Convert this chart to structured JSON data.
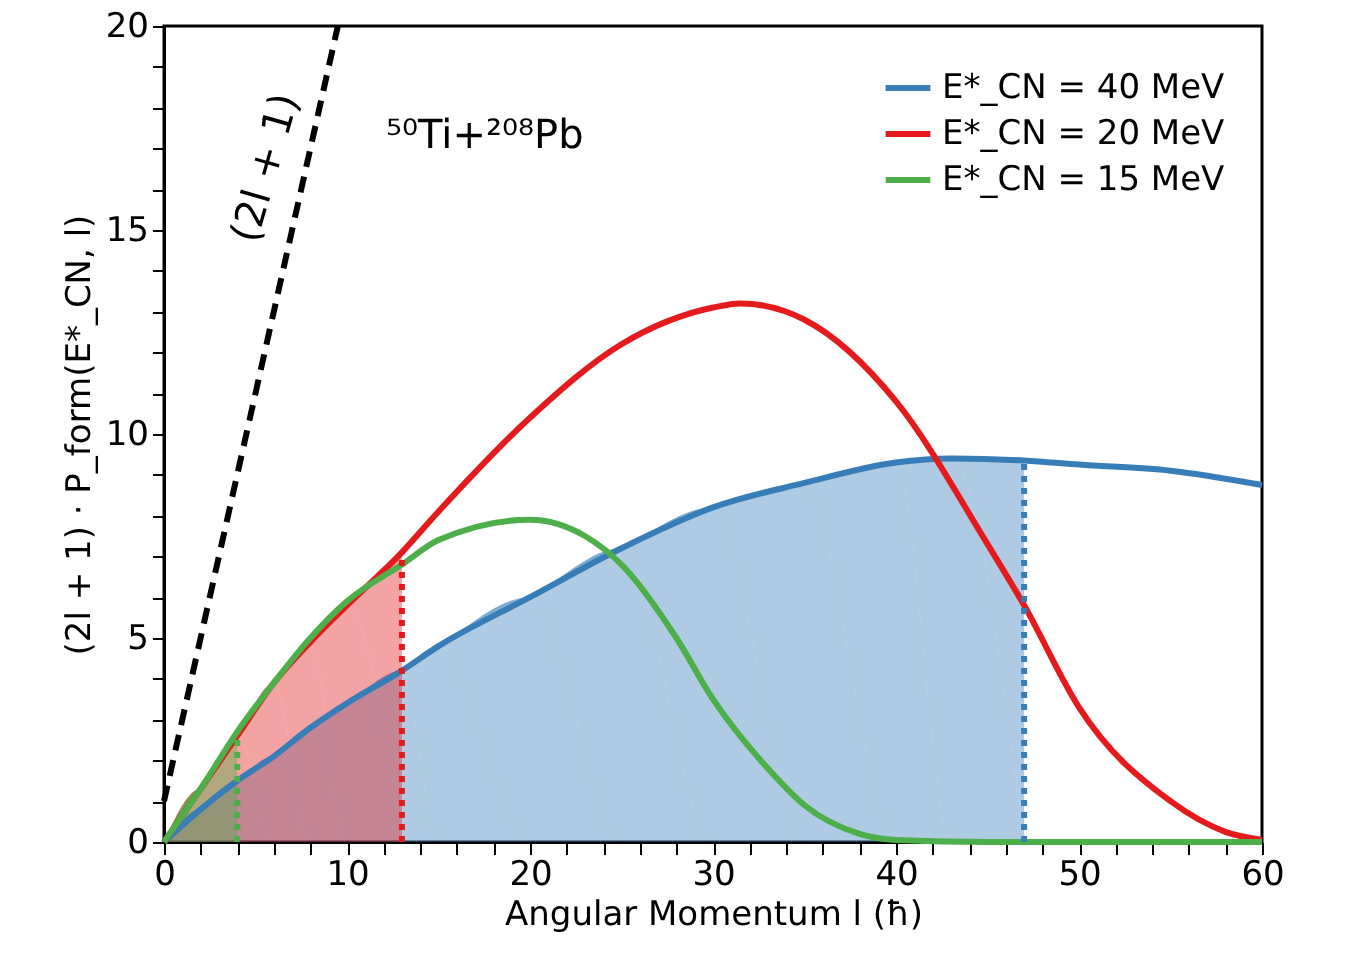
{
  "chart_data": {
    "type": "line",
    "xlabel": "Angular Momentum l (ħ)",
    "ylabel": "(2l + 1) · P_form(E*_CN, l)",
    "xlim": [
      0,
      60
    ],
    "ylim": [
      0,
      20
    ],
    "xticks": [
      0,
      {
        "value": 2,
        "label": null
      },
      {
        "value": 4,
        "label": null
      },
      {
        "value": 6,
        "label": null
      },
      {
        "value": 8,
        "label": null
      },
      10,
      {
        "value": 12,
        "label": null
      },
      {
        "value": 14,
        "label": null
      },
      {
        "value": 16,
        "label": null
      },
      {
        "value": 18,
        "label": null
      },
      20,
      {
        "value": 22,
        "label": null
      },
      {
        "value": 24,
        "label": null
      },
      {
        "value": 26,
        "label": null
      },
      {
        "value": 28,
        "label": null
      },
      30,
      {
        "value": 32,
        "label": null
      },
      {
        "value": 34,
        "label": null
      },
      {
        "value": 36,
        "label": null
      },
      {
        "value": 38,
        "label": null
      },
      40,
      {
        "value": 42,
        "label": null
      },
      {
        "value": 44,
        "label": null
      },
      {
        "value": 46,
        "label": null
      },
      {
        "value": 48,
        "label": null
      },
      50,
      {
        "value": 52,
        "label": null
      },
      {
        "value": 54,
        "label": null
      },
      {
        "value": 56,
        "label": null
      },
      {
        "value": 58,
        "label": null
      },
      60
    ],
    "yticks": [
      0,
      {
        "value": 1,
        "label": null
      },
      {
        "value": 2,
        "label": null
      },
      {
        "value": 3,
        "label": null
      },
      {
        "value": 4,
        "label": null
      },
      5,
      {
        "value": 6,
        "label": null
      },
      {
        "value": 7,
        "label": null
      },
      {
        "value": 8,
        "label": null
      },
      {
        "value": 9,
        "label": null
      },
      10,
      {
        "value": 11,
        "label": null
      },
      {
        "value": 12,
        "label": null
      },
      {
        "value": 13,
        "label": null
      },
      {
        "value": 14,
        "label": null
      },
      15,
      {
        "value": 16,
        "label": null
      },
      {
        "value": 17,
        "label": null
      },
      {
        "value": 18,
        "label": null
      },
      {
        "value": 19,
        "label": null
      },
      20
    ],
    "legend": "top right",
    "series": [
      {
        "color": "#000000",
        "line_style": "dashed",
        "x": [
          0,
          9.5
        ],
        "values": [
          1,
          20
        ]
      },
      {
        "type": "area",
        "color": "#377eb8",
        "x": [
          0,
          2,
          4,
          6,
          8,
          10,
          13,
          15,
          20,
          25,
          30,
          35,
          40,
          43,
          47
        ],
        "values": [
          0,
          0.8,
          1.5,
          2.1,
          2.8,
          3.4,
          4.2,
          4.8,
          6.0,
          7.2,
          8.2,
          8.8,
          9.3,
          9.4,
          9.35
        ]
      },
      {
        "type": "area",
        "color": "#e41a1c",
        "x": [
          0,
          2,
          4,
          6,
          8,
          10,
          13
        ],
        "values": [
          0,
          1.3,
          2.6,
          3.9,
          4.9,
          5.8,
          7.1
        ]
      },
      {
        "type": "area",
        "color": "#4daf4a",
        "x": [
          0,
          2,
          4
        ],
        "values": [
          0,
          1.3,
          2.7
        ]
      },
      {
        "name": "E*_CN = 40 MeV",
        "color": "#377eb8",
        "line_style": "solid",
        "x": [
          0,
          2,
          4,
          6,
          8,
          10,
          13,
          15,
          20,
          25,
          30,
          35,
          40,
          43,
          47,
          50,
          55,
          60
        ],
        "values": [
          0,
          0.8,
          1.5,
          2.1,
          2.8,
          3.4,
          4.2,
          4.8,
          6.0,
          7.2,
          8.2,
          8.8,
          9.3,
          9.4,
          9.35,
          9.25,
          9.1,
          8.75
        ]
      },
      {
        "name": "E*_CN = 20 MeV",
        "color": "#e41a1c",
        "line_style": "solid",
        "x": [
          0,
          2,
          4,
          6,
          8,
          10,
          13,
          15,
          20,
          25,
          30,
          31.5,
          35,
          40,
          45,
          47,
          50,
          55,
          58,
          60
        ],
        "values": [
          0,
          1.3,
          2.6,
          3.9,
          4.9,
          5.8,
          7.1,
          8.1,
          10.4,
          12.2,
          13.1,
          13.2,
          12.8,
          10.8,
          7.3,
          5.8,
          3.3,
          1.0,
          0.25,
          0.05
        ]
      },
      {
        "name": "E*_CN = 15 MeV",
        "color": "#4daf4a",
        "line_style": "solid",
        "x": [
          0,
          2,
          4,
          6,
          8,
          10,
          13,
          15,
          20,
          23,
          25,
          28,
          30,
          33,
          35,
          38,
          40,
          45,
          60
        ],
        "values": [
          0,
          1.3,
          2.7,
          3.9,
          5.0,
          5.9,
          6.8,
          7.4,
          7.9,
          7.5,
          6.8,
          5.0,
          3.5,
          1.8,
          0.9,
          0.2,
          0.05,
          0,
          0
        ]
      },
      {
        "color": "#377eb8",
        "line_style": "dotted",
        "x": [
          47,
          47
        ],
        "values": [
          0,
          9.35
        ]
      },
      {
        "color": "#e41a1c",
        "line_style": "dotted",
        "x": [
          13,
          13
        ],
        "values": [
          0,
          7.1
        ]
      },
      {
        "color": "#4daf4a",
        "line_style": "dotted",
        "x": [
          4,
          4
        ],
        "values": [
          0,
          2.7
        ]
      }
    ],
    "annotations": [
      "(2l + 1)",
      "⁵⁰Ti+²⁰⁸Pb"
    ]
  }
}
